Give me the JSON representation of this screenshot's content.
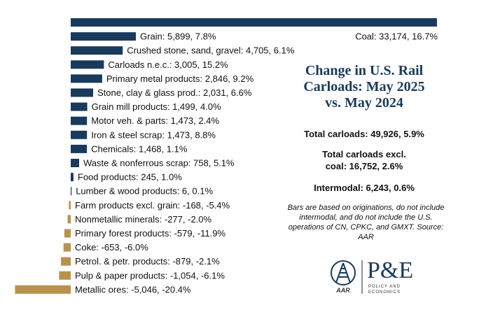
{
  "chart_data": {
    "type": "bar",
    "orientation": "horizontal",
    "title": "Change in U.S. Rail Carloads: May 2025 vs. May 2024",
    "categories": [
      "Coal",
      "Grain",
      "Crushed stone, sand, gravel",
      "Carloads n.e.c.",
      "Primary metal products",
      "Stone, clay & glass prod.",
      "Grain mill products",
      "Motor veh. & parts",
      "Iron & steel scrap",
      "Chemicals",
      "Waste & nonferrous scrap",
      "Food products",
      "Lumber & wood products",
      "Farm products excl. grain",
      "Nonmetallic minerals",
      "Primary forest products",
      "Coke",
      "Petrol. & petr. products",
      "Pulp & paper products",
      "Metallic ores"
    ],
    "values": [
      33174,
      5899,
      4705,
      3005,
      2846,
      2031,
      1499,
      1473,
      1473,
      1468,
      758,
      245,
      6,
      -168,
      -277,
      -579,
      -653,
      -879,
      -1054,
      -5046
    ],
    "labels": [
      "Coal: 33,174, 16.7%",
      "Grain: 5,899, 7.8%",
      "Crushed stone, sand, gravel: 4,705, 6.1%",
      "Carloads n.e.c.: 3,005, 15.2%",
      "Primary metal products: 2,846, 9.2%",
      "Stone, clay & glass prod.: 2,031, 6.6%",
      "Grain mill products: 1,499, 4.0%",
      "Motor veh. & parts: 1,473, 2.4%",
      "Iron & steel scrap: 1,473, 8.8%",
      "Chemicals: 1,468, 1.1%",
      "Waste & nonferrous scrap: 758, 5.1%",
      "Food products: 245, 1.0%",
      "Lumber & wood products: 6, 0.1%",
      "Farm products excl. grain: -168, -5.4%",
      "Nonmetallic minerals: -277, -2.0%",
      "Primary forest products: -579, -11.9%",
      "Coke: -653, -6.0%",
      "Petrol. & petr. products: -879, -2.1%",
      "Pulp & paper products: -1,054, -6.1%",
      "Metallic ores: -5,046, -20.4%"
    ],
    "colors": {
      "positive": "#1a3a5c",
      "negative": "#b8924a"
    }
  },
  "panel": {
    "title_line1": "Change in U.S. Rail",
    "title_line2": "Carloads: May 2025",
    "title_line3": "vs. May 2024",
    "total_carloads": "Total carloads: 49,926, 5.9%",
    "excl_coal_line1": "Total carloads excl.",
    "excl_coal_line2": "coal: 16,752, 2.6%",
    "intermodal": "Intermodal: 6,243, 0.6%",
    "note": "Bars are based on originations, do not include intermodal, and do not include the U.S. operations of CN, CPKC, and GMXT. Source: AAR"
  },
  "logos": {
    "aar": "AAR",
    "pe_mark": "P&E",
    "pe_sub1": "POLICY AND",
    "pe_sub2": "ECONOMICS"
  }
}
